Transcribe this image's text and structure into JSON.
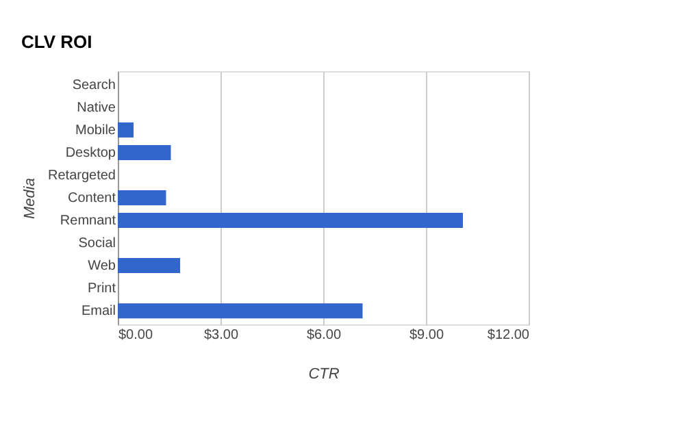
{
  "chart_data": {
    "type": "bar",
    "orientation": "horizontal",
    "title": "CLV ROI",
    "xlabel": "CTR",
    "ylabel": "Media",
    "categories": [
      "Search",
      "Native",
      "Mobile",
      "Desktop",
      "Retargeted",
      "Content",
      "Remnant",
      "Social",
      "Web",
      "Print",
      "Email"
    ],
    "values": [
      0,
      0,
      0.46,
      1.55,
      0,
      1.41,
      10.08,
      0,
      1.82,
      0,
      7.15
    ],
    "color": "#3366cc",
    "xlim": [
      0,
      12
    ],
    "xticks": [
      {
        "value": 0,
        "label": "$0.00"
      },
      {
        "value": 3,
        "label": "$3.00"
      },
      {
        "value": 6,
        "label": "$6.00"
      },
      {
        "value": 9,
        "label": "$9.00"
      },
      {
        "value": 12,
        "label": "$12.00"
      }
    ],
    "grid": "x"
  }
}
